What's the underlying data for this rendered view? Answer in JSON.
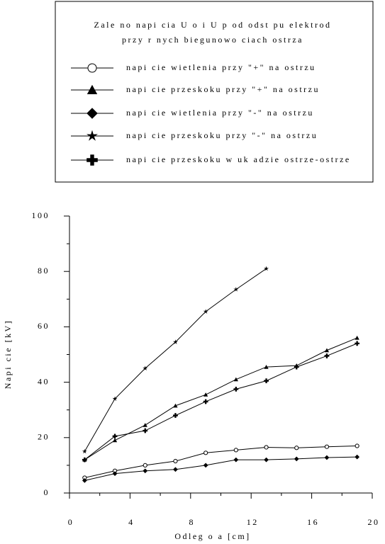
{
  "chart_data": {
    "type": "line",
    "title": "Zale no   napi cia U o i U p od odst pu elektrod",
    "subtitle": "przy r   nych biegunowo ciach ostrza",
    "x_label": "Odleg o  a [cm]",
    "y_label": "Napi cie [kV]",
    "x": [
      1,
      3,
      5,
      7,
      9,
      11,
      13,
      15,
      17,
      19
    ],
    "xlim": [
      0,
      20
    ],
    "xticks": [
      0,
      4,
      8,
      12,
      16,
      20
    ],
    "x_minor_ticks": [
      2,
      6,
      10,
      14,
      18
    ],
    "ylim": [
      0,
      100
    ],
    "yticks": [
      0,
      20,
      40,
      60,
      80,
      100
    ],
    "y_minor_ticks": [
      10,
      30,
      50,
      70,
      90
    ],
    "series": [
      {
        "name": "napi cie  wietlenia przy \"+\" na ostrzu",
        "marker": "circle",
        "color": "#000000",
        "values": [
          5.5,
          8,
          10,
          11.5,
          14.5,
          15.5,
          16.5,
          16.3,
          16.7,
          17
        ]
      },
      {
        "name": "napi cie przeskoku przy \"+\" na ostrzu",
        "marker": "triangle",
        "color": "#000000",
        "values": [
          12,
          19,
          24.5,
          31.5,
          35.5,
          41,
          45.5,
          46,
          51.5,
          56
        ]
      },
      {
        "name": "napi cie  wietlenia przy \"-\" na ostrzu",
        "marker": "diamond",
        "color": "#000000",
        "values": [
          4.5,
          7,
          8,
          8.5,
          10,
          12,
          12,
          12.3,
          12.8,
          13
        ]
      },
      {
        "name": "napi cie przeskoku przy \"-\" na ostrzu",
        "marker": "star",
        "color": "#000000",
        "values": [
          15,
          34,
          45,
          54.5,
          65.5,
          73.5,
          81,
          null,
          null,
          null
        ]
      },
      {
        "name": "napi cie przeskoku w uk adzie ostrze-ostrze",
        "marker": "plus",
        "color": "#000000",
        "values": [
          12,
          20.5,
          22.5,
          28,
          33,
          37.5,
          40.5,
          45.5,
          49.5,
          54
        ]
      }
    ]
  }
}
